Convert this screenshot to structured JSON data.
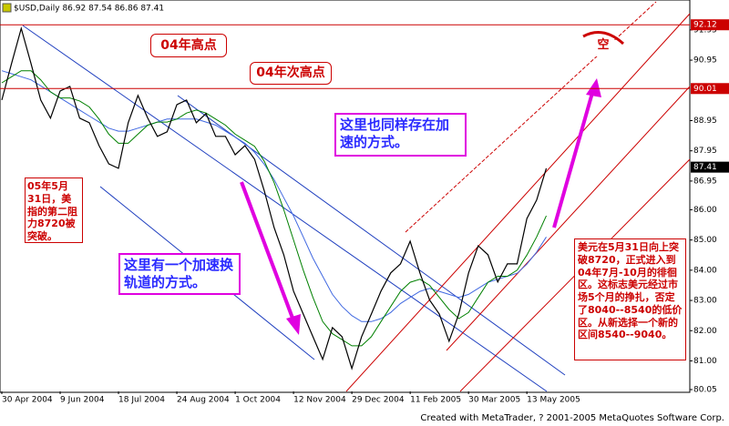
{
  "chart_data": {
    "type": "line",
    "title": "$USD,Daily  86.92 87.54 86.86 87.41",
    "categories": [
      "30 Apr 2004",
      null,
      null,
      null,
      null,
      null,
      "9 Jun 2004",
      null,
      null,
      null,
      null,
      null,
      "18 Jul 2004",
      null,
      null,
      null,
      null,
      null,
      "24 Aug 2004",
      null,
      null,
      null,
      null,
      null,
      "1 Oct 2004",
      null,
      null,
      null,
      null,
      null,
      "12 Nov 2004",
      null,
      null,
      null,
      null,
      null,
      "29 Dec 2004",
      null,
      null,
      null,
      null,
      null,
      "11 Feb 2005",
      null,
      null,
      null,
      null,
      null,
      "30 Mar 2005",
      null,
      null,
      null,
      null,
      null,
      "13 May 2005",
      null,
      null
    ],
    "series": [
      {
        "name": "USD",
        "color": "#000000",
        "values": [
          89.63,
          90.84,
          92.0,
          90.84,
          89.63,
          89.03,
          89.93,
          90.08,
          89.03,
          88.88,
          88.12,
          87.52,
          87.37,
          88.88,
          89.78,
          89.03,
          88.43,
          88.58,
          89.48,
          89.63,
          88.88,
          89.18,
          88.43,
          88.43,
          87.82,
          88.12,
          87.67,
          86.62,
          85.41,
          84.51,
          83.31,
          82.55,
          81.8,
          81.05,
          82.1,
          81.8,
          80.75,
          81.8,
          82.55,
          83.31,
          83.91,
          84.21,
          84.96,
          83.91,
          83.01,
          82.55,
          81.65,
          82.55,
          83.91,
          84.81,
          84.51,
          83.61,
          84.21,
          84.21,
          85.71,
          86.32,
          87.37
        ]
      },
      {
        "name": "MA fast",
        "color": "#008000",
        "values": [
          90.2,
          90.4,
          90.6,
          90.6,
          90.3,
          89.9,
          89.7,
          89.7,
          89.6,
          89.4,
          89.0,
          88.5,
          88.2,
          88.2,
          88.5,
          88.8,
          88.9,
          88.9,
          89.0,
          89.2,
          89.3,
          89.2,
          89.0,
          88.8,
          88.5,
          88.3,
          88.1,
          87.6,
          86.9,
          86.0,
          85.0,
          84.0,
          83.1,
          82.3,
          81.9,
          81.7,
          81.5,
          81.5,
          81.8,
          82.3,
          82.8,
          83.3,
          83.6,
          83.7,
          83.5,
          83.1,
          82.7,
          82.4,
          82.6,
          83.1,
          83.6,
          83.8,
          83.8,
          84.0,
          84.5,
          85.1,
          85.8
        ]
      },
      {
        "name": "MA slow",
        "color": "#4169e1",
        "values": [
          90.6,
          90.5,
          90.4,
          90.3,
          90.1,
          89.9,
          89.7,
          89.5,
          89.3,
          89.1,
          88.9,
          88.7,
          88.6,
          88.6,
          88.7,
          88.8,
          88.9,
          89.0,
          89.0,
          89.0,
          89.0,
          88.9,
          88.8,
          88.6,
          88.4,
          88.2,
          87.9,
          87.5,
          87.0,
          86.4,
          85.8,
          85.1,
          84.4,
          83.8,
          83.2,
          82.8,
          82.5,
          82.3,
          82.3,
          82.4,
          82.6,
          82.9,
          83.1,
          83.3,
          83.4,
          83.3,
          83.2,
          83.1,
          83.2,
          83.4,
          83.6,
          83.7,
          83.8,
          83.9,
          84.2,
          84.6,
          85.1
        ]
      }
    ],
    "ylim": [
      79.99,
      92.94
    ],
    "yticks": [
      91.95,
      90.95,
      88.95,
      87.95,
      86.95,
      {
        "value": 86,
        "label": "86.00"
      },
      {
        "value": 85,
        "label": "85.00"
      },
      {
        "value": 84,
        "label": "84.00"
      },
      {
        "value": 83,
        "label": "83.00"
      },
      {
        "value": 82,
        "label": "82.00"
      },
      {
        "value": 81,
        "label": "81.00"
      },
      80.05
    ],
    "levels": [
      92.12,
      90.01
    ],
    "level_color": "#cc0000",
    "last_price": 87.41,
    "annotations": [
      "04年高点",
      "04年次高点",
      "这里也同样存在加速的方式。",
      "05年5月31日，美指的第二阻力8720被突破。",
      "这里有一个加速换轨道的方式。",
      "空",
      "美元在5月31日向上突破8720，正式进入到04年7月-10月的徘徊区。这标志美元经过市场5个月的挣扎，否定了8040--8540的低价区。从新选择一个新的区间8540--9040。"
    ]
  },
  "footer": "Created with MetaTrader, ? 2001-2005 MetaQuotes Software Corp."
}
